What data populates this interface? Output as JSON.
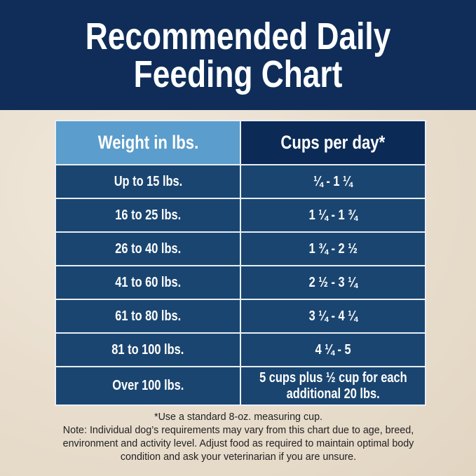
{
  "title": {
    "line1": "Recommended Daily",
    "line2": "Feeding Chart"
  },
  "table": {
    "headers": [
      "Weight in lbs.",
      "Cups per day*"
    ],
    "rows": [
      {
        "weight": "Up to 15 lbs.",
        "cups": "¼ - 1 ¼"
      },
      {
        "weight": "16 to 25 lbs.",
        "cups": "1 ¼ - 1 ¾"
      },
      {
        "weight": "26 to 40 lbs.",
        "cups": "1 ¾ - 2 ½"
      },
      {
        "weight": "41 to 60 lbs.",
        "cups": "2 ½ - 3 ¼"
      },
      {
        "weight": "61 to 80 lbs.",
        "cups": "3 ¼ - 4 ¼"
      },
      {
        "weight": "81 to 100 lbs.",
        "cups": "4 ¼ - 5"
      },
      {
        "weight": "Over 100 lbs.",
        "cups": "5 cups plus ½ cup for each",
        "cups_line2": "additional 20 lbs."
      }
    ]
  },
  "notes": {
    "footnote": "*Use a standard 8-oz. measuring cup.",
    "line1": "Note: Individual dog’s requirements may vary from this chart due to age, breed,",
    "line2": "environment and activity level. Adjust food as required to maintain optimal body",
    "line3": "condition and ask your veterinarian if you are unsure."
  },
  "colors": {
    "header_bg": "#0f2d58",
    "weight_header": "#5b9dcc",
    "cups_header": "#0c2a56",
    "row_bg": "#1a4570"
  }
}
